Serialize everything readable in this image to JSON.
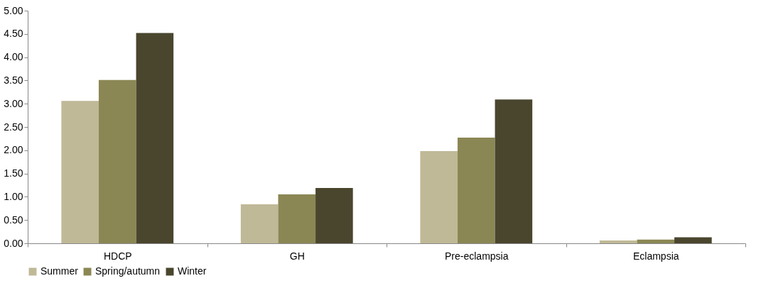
{
  "chart_data": {
    "type": "bar",
    "categories": [
      "HDCP",
      "GH",
      "Pre-eclampsia",
      "Eclampsia"
    ],
    "series": [
      {
        "name": "Summer",
        "color": "#c0b997",
        "values": [
          3.06,
          0.84,
          1.98,
          0.06
        ]
      },
      {
        "name": "Spring/autumn",
        "color": "#8b8754",
        "values": [
          3.51,
          1.05,
          2.27,
          0.08
        ]
      },
      {
        "name": "Winter",
        "color": "#4a462e",
        "values": [
          4.52,
          1.19,
          3.09,
          0.13
        ]
      }
    ],
    "ylim": [
      0,
      5
    ],
    "yticks": [
      {
        "value": 0,
        "label": "0.00"
      },
      {
        "value": 0.5,
        "label": "0.50"
      },
      {
        "value": 1,
        "label": "1.00"
      },
      {
        "value": 1.5,
        "label": "1.50"
      },
      {
        "value": 2,
        "label": "2.00"
      },
      {
        "value": 2.5,
        "label": "2.50"
      },
      {
        "value": 3,
        "label": "3.00"
      },
      {
        "value": 3.5,
        "label": "3.50"
      },
      {
        "value": 4,
        "label": "4.00"
      },
      {
        "value": 4.5,
        "label": "4.50"
      },
      {
        "value": 5,
        "label": "5.00"
      }
    ],
    "grid": false,
    "legend": "bottom"
  }
}
